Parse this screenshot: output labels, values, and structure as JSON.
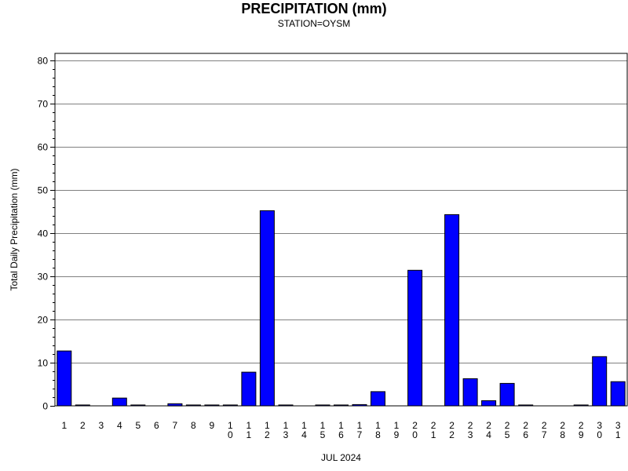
{
  "header": {
    "title": "PRECIPITATION (mm)",
    "subtitle": "STATION=OYSM"
  },
  "chart_data": {
    "type": "bar",
    "title": "PRECIPITATION (mm)",
    "subtitle": "STATION=OYSM",
    "xlabel": "JUL 2024",
    "ylabel": "Total Daily Precipitation (mm)",
    "ylim": [
      0,
      80
    ],
    "yticks": [
      0,
      10,
      20,
      30,
      40,
      50,
      60,
      70,
      80
    ],
    "grid": true,
    "bar_color": "#0000ff",
    "categories": [
      "1",
      "2",
      "3",
      "4",
      "5",
      "6",
      "7",
      "8",
      "9",
      "10",
      "11",
      "12",
      "13",
      "14",
      "15",
      "16",
      "17",
      "18",
      "19",
      "20",
      "21",
      "22",
      "23",
      "24",
      "25",
      "26",
      "27",
      "28",
      "29",
      "30",
      "31"
    ],
    "values": [
      12.7,
      0.2,
      null,
      1.8,
      0.2,
      null,
      0.5,
      0.2,
      0.2,
      0.2,
      7.8,
      45.2,
      0.2,
      null,
      0.2,
      0.2,
      0.3,
      3.3,
      null,
      31.4,
      null,
      44.3,
      6.3,
      1.2,
      5.2,
      0.2,
      null,
      null,
      0.2,
      11.4,
      5.6
    ]
  }
}
